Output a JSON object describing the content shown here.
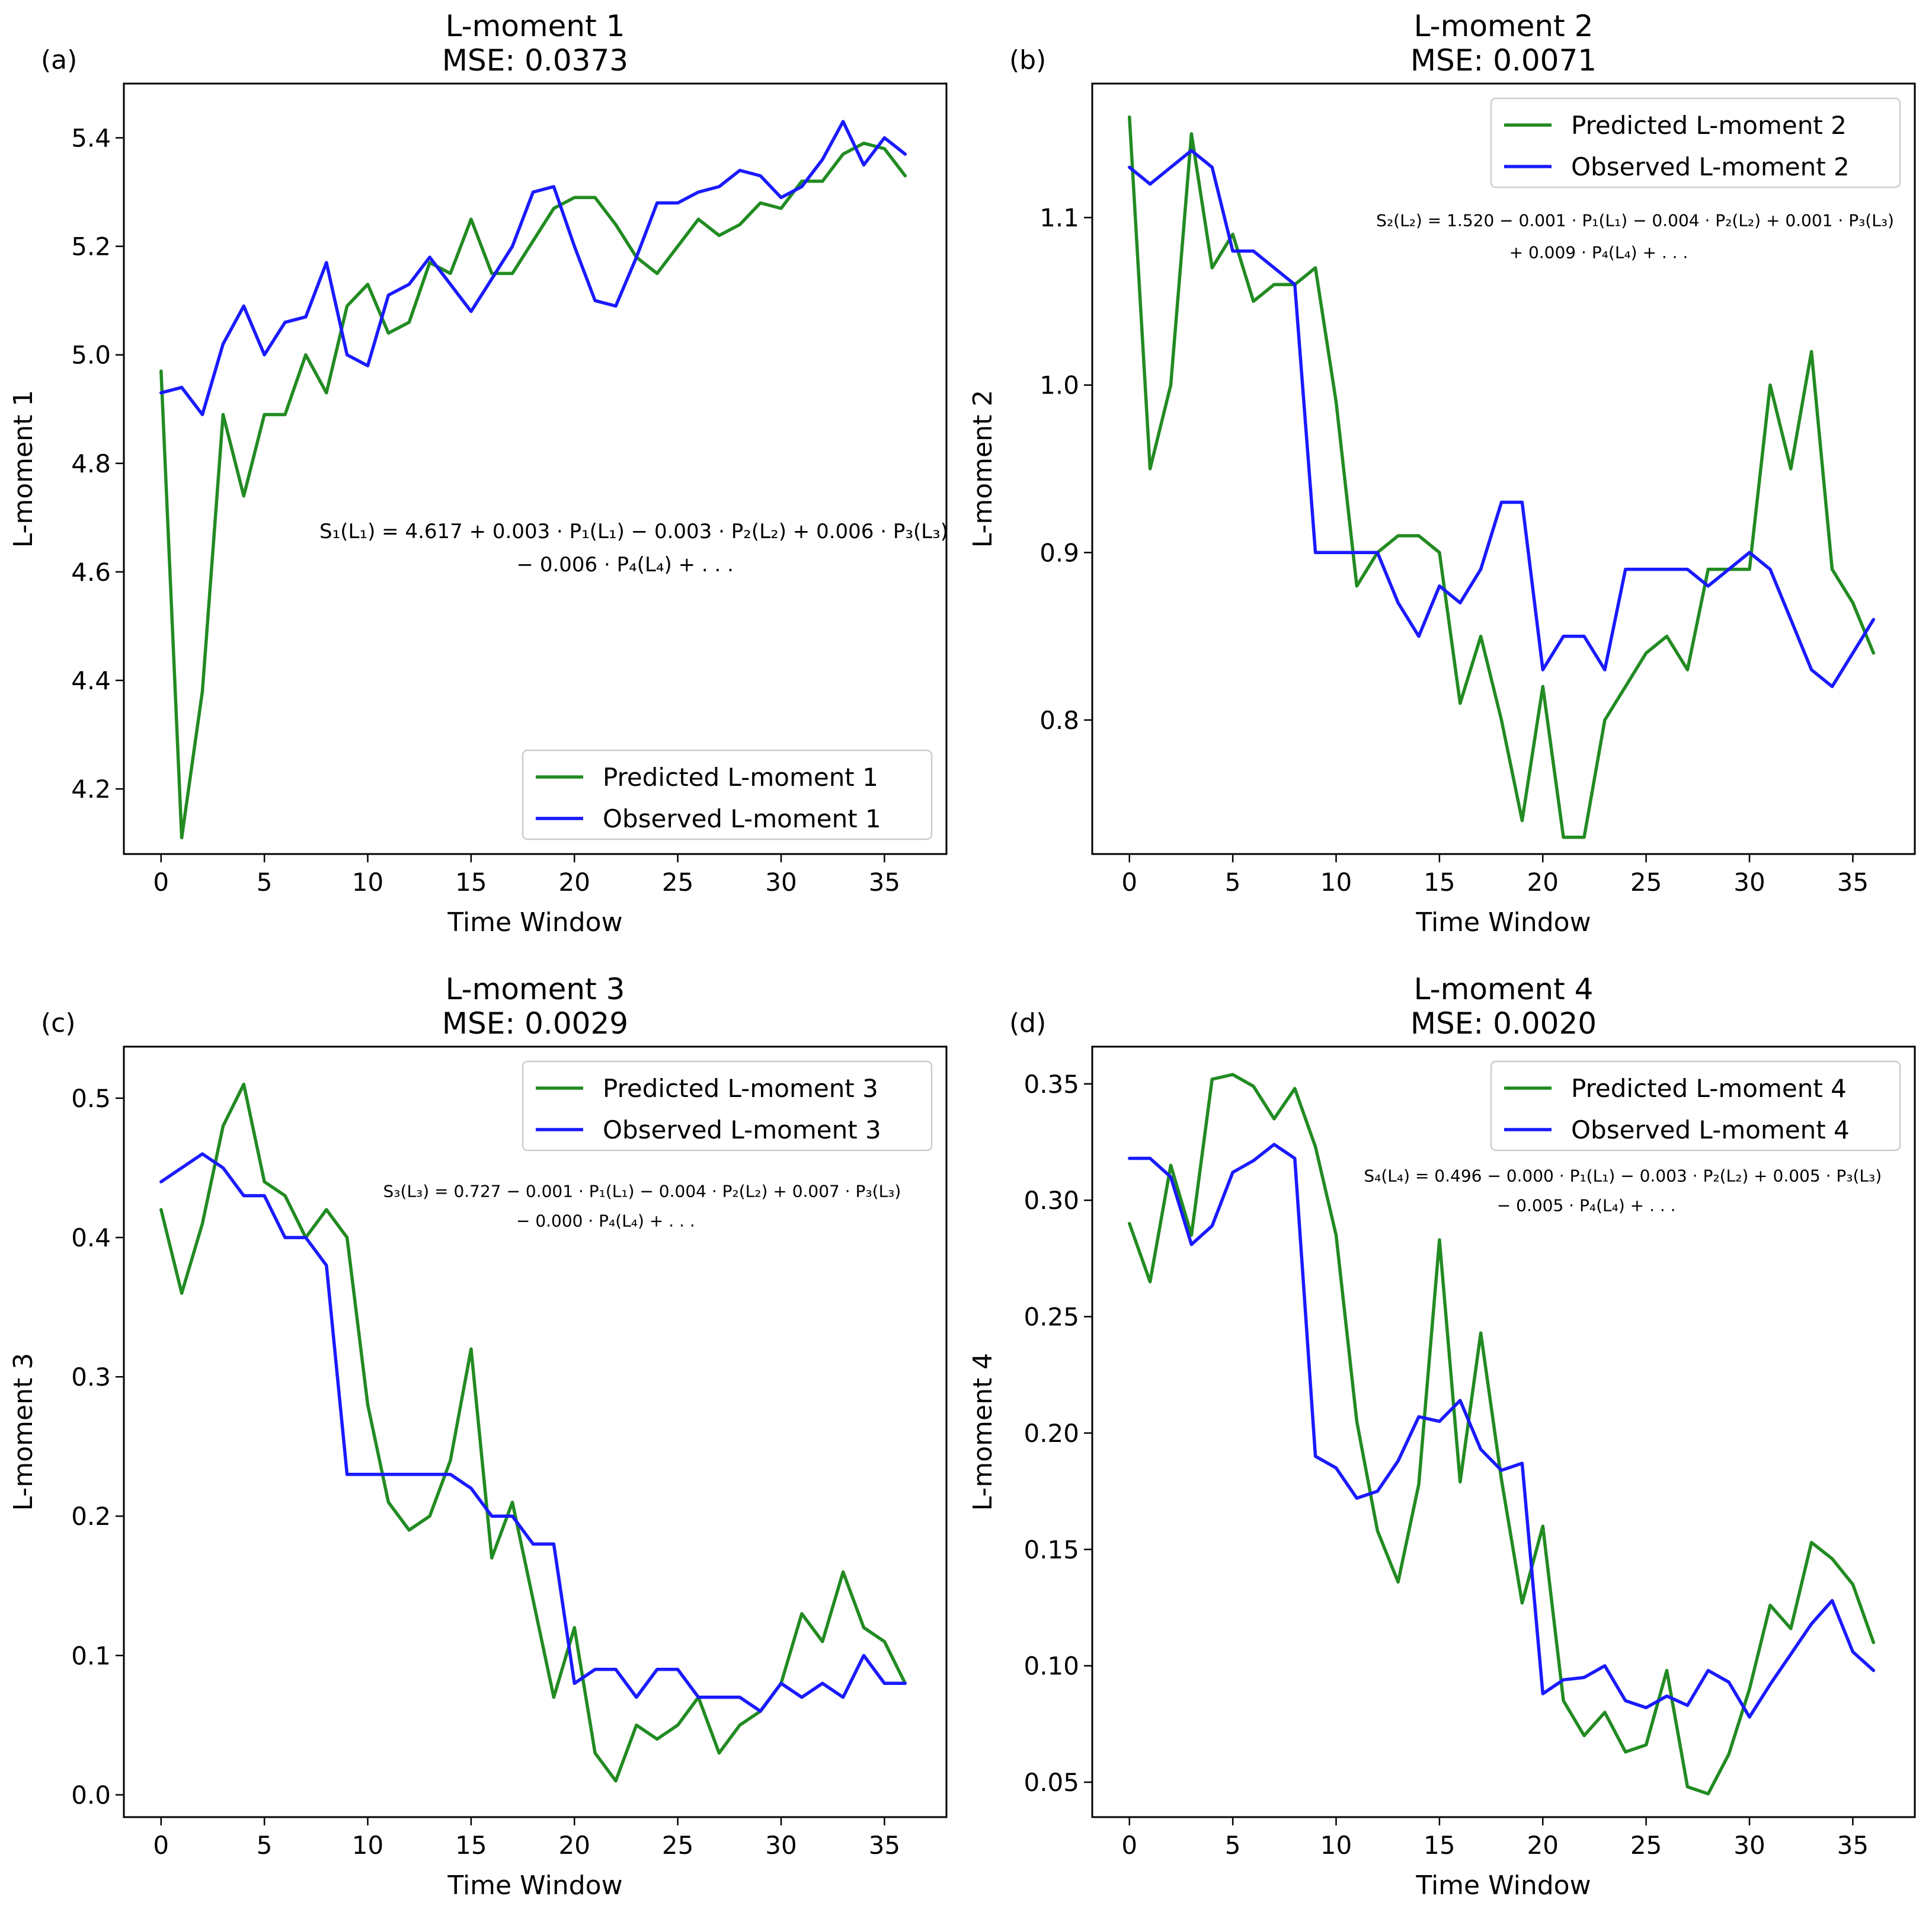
{
  "colors": {
    "predicted": "#228B22",
    "observed": "#1a1aff",
    "axis": "#000000"
  },
  "chart_data": [
    {
      "type": "line",
      "panel_label": "(a)",
      "title": "L-moment 1",
      "subtitle": "MSE: 0.0373",
      "xlabel": "Time Window",
      "ylabel": "L-moment 1",
      "xlim": [
        -1.8,
        38
      ],
      "ylim": [
        4.08,
        5.5
      ],
      "xticks": [
        0,
        5,
        10,
        15,
        20,
        25,
        30,
        35
      ],
      "yticks": [
        4.2,
        4.4,
        4.6,
        4.8,
        5.0,
        5.2,
        5.4
      ],
      "ytick_labels": [
        "4.2",
        "4.4",
        "4.6",
        "4.8",
        "5.0",
        "5.2",
        "5.4"
      ],
      "legend_position": "lower-right",
      "equation": [
        "S₁(L₁) = 4.617 + 0.003 · P₁(L₁) − 0.003 · P₂(L₂) + 0.006 · P₃(L₃)",
        "− 0.006 · P₄(L₄) + . . ."
      ],
      "series": [
        {
          "name": "Predicted L-moment 1",
          "x": [
            0,
            1,
            2,
            3,
            4,
            5,
            6,
            7,
            8,
            9,
            10,
            11,
            12,
            13,
            14,
            15,
            16,
            17,
            18,
            19,
            20,
            21,
            22,
            23,
            24,
            25,
            26,
            27,
            28,
            29,
            30,
            31,
            32,
            33,
            34,
            35,
            36
          ],
          "values": [
            4.97,
            4.11,
            4.38,
            4.89,
            4.74,
            4.89,
            4.89,
            5.0,
            4.93,
            5.09,
            5.13,
            5.04,
            5.06,
            5.17,
            5.15,
            5.25,
            5.15,
            5.15,
            5.21,
            5.27,
            5.29,
            5.29,
            5.24,
            5.18,
            5.15,
            5.2,
            5.25,
            5.22,
            5.24,
            5.28,
            5.27,
            5.32,
            5.32,
            5.37,
            5.39,
            5.38,
            5.33
          ]
        },
        {
          "name": "Observed L-moment 1",
          "x": [
            0,
            1,
            2,
            3,
            4,
            5,
            6,
            7,
            8,
            9,
            10,
            11,
            12,
            13,
            14,
            15,
            16,
            17,
            18,
            19,
            20,
            21,
            22,
            23,
            24,
            25,
            26,
            27,
            28,
            29,
            30,
            31,
            32,
            33,
            34,
            35,
            36
          ],
          "values": [
            4.93,
            4.94,
            4.89,
            5.02,
            5.09,
            5.0,
            5.06,
            5.07,
            5.17,
            5.0,
            4.98,
            5.11,
            5.13,
            5.18,
            5.13,
            5.08,
            5.14,
            5.2,
            5.3,
            5.31,
            5.2,
            5.1,
            5.09,
            5.18,
            5.28,
            5.28,
            5.3,
            5.31,
            5.34,
            5.33,
            5.29,
            5.31,
            5.36,
            5.43,
            5.35,
            5.4,
            5.37
          ]
        }
      ]
    },
    {
      "type": "line",
      "panel_label": "(b)",
      "title": "L-moment 2",
      "subtitle": "MSE: 0.0071",
      "xlabel": "Time Window",
      "ylabel": "L-moment 2",
      "xlim": [
        -1.8,
        38
      ],
      "ylim": [
        0.72,
        1.18
      ],
      "xticks": [
        0,
        5,
        10,
        15,
        20,
        25,
        30,
        35
      ],
      "yticks": [
        0.8,
        0.9,
        1.0,
        1.1
      ],
      "ytick_labels": [
        "0.8",
        "0.9",
        "1.0",
        "1.1"
      ],
      "legend_position": "upper-right",
      "equation": [
        "S₂(L₂) = 1.520 − 0.001 · P₁(L₁) − 0.004 · P₂(L₂) + 0.001 · P₃(L₃)",
        "+ 0.009 · P₄(L₄) + . . ."
      ],
      "series": [
        {
          "name": "Predicted L-moment 2",
          "x": [
            0,
            1,
            2,
            3,
            4,
            5,
            6,
            7,
            8,
            9,
            10,
            11,
            12,
            13,
            14,
            15,
            16,
            17,
            18,
            19,
            20,
            21,
            22,
            23,
            24,
            25,
            26,
            27,
            28,
            29,
            30,
            31,
            32,
            33,
            34,
            35,
            36
          ],
          "values": [
            1.16,
            0.95,
            1.0,
            1.15,
            1.07,
            1.09,
            1.05,
            1.06,
            1.06,
            1.07,
            0.99,
            0.88,
            0.9,
            0.91,
            0.91,
            0.9,
            0.81,
            0.85,
            0.8,
            0.74,
            0.82,
            0.73,
            0.73,
            0.8,
            0.82,
            0.84,
            0.85,
            0.83,
            0.89,
            0.89,
            0.89,
            1.0,
            0.95,
            1.02,
            0.89,
            0.87,
            0.84
          ]
        },
        {
          "name": "Observed L-moment 2",
          "x": [
            0,
            1,
            2,
            3,
            4,
            5,
            6,
            7,
            8,
            9,
            10,
            11,
            12,
            13,
            14,
            15,
            16,
            17,
            18,
            19,
            20,
            21,
            22,
            23,
            24,
            25,
            26,
            27,
            28,
            29,
            30,
            31,
            32,
            33,
            34,
            35,
            36
          ],
          "values": [
            1.13,
            1.12,
            1.13,
            1.14,
            1.13,
            1.08,
            1.08,
            1.07,
            1.06,
            0.9,
            0.9,
            0.9,
            0.9,
            0.87,
            0.85,
            0.88,
            0.87,
            0.89,
            0.93,
            0.93,
            0.83,
            0.85,
            0.85,
            0.83,
            0.89,
            0.89,
            0.89,
            0.89,
            0.88,
            0.89,
            0.9,
            0.89,
            0.86,
            0.83,
            0.82,
            0.84,
            0.86
          ]
        }
      ]
    },
    {
      "type": "line",
      "panel_label": "(c)",
      "title": "L-moment 3",
      "subtitle": "MSE: 0.0029",
      "xlabel": "Time Window",
      "ylabel": "L-moment 3",
      "xlim": [
        -1.8,
        38
      ],
      "ylim": [
        -0.016,
        0.537
      ],
      "xticks": [
        0,
        5,
        10,
        15,
        20,
        25,
        30,
        35
      ],
      "yticks": [
        0.0,
        0.1,
        0.2,
        0.3,
        0.4,
        0.5
      ],
      "ytick_labels": [
        "0.0",
        "0.1",
        "0.2",
        "0.3",
        "0.4",
        "0.5"
      ],
      "legend_position": "upper-right",
      "equation": [
        "S₃(L₃) = 0.727 − 0.001 · P₁(L₁) − 0.004 · P₂(L₂) + 0.007 · P₃(L₃)",
        "− 0.000 · P₄(L₄) + . . ."
      ],
      "series": [
        {
          "name": "Predicted L-moment 3",
          "x": [
            0,
            1,
            2,
            3,
            4,
            5,
            6,
            7,
            8,
            9,
            10,
            11,
            12,
            13,
            14,
            15,
            16,
            17,
            18,
            19,
            20,
            21,
            22,
            23,
            24,
            25,
            26,
            27,
            28,
            29,
            30,
            31,
            32,
            33,
            34,
            35,
            36
          ],
          "values": [
            0.42,
            0.36,
            0.41,
            0.48,
            0.51,
            0.44,
            0.43,
            0.4,
            0.42,
            0.4,
            0.28,
            0.21,
            0.19,
            0.2,
            0.24,
            0.32,
            0.17,
            0.21,
            0.14,
            0.07,
            0.12,
            0.03,
            0.01,
            0.05,
            0.04,
            0.05,
            0.07,
            0.03,
            0.05,
            0.06,
            0.08,
            0.13,
            0.11,
            0.16,
            0.12,
            0.11,
            0.08
          ]
        },
        {
          "name": "Observed L-moment 3",
          "x": [
            0,
            1,
            2,
            3,
            4,
            5,
            6,
            7,
            8,
            9,
            10,
            11,
            12,
            13,
            14,
            15,
            16,
            17,
            18,
            19,
            20,
            21,
            22,
            23,
            24,
            25,
            26,
            27,
            28,
            29,
            30,
            31,
            32,
            33,
            34,
            35,
            36
          ],
          "values": [
            0.44,
            0.45,
            0.46,
            0.45,
            0.43,
            0.43,
            0.4,
            0.4,
            0.38,
            0.23,
            0.23,
            0.23,
            0.23,
            0.23,
            0.23,
            0.22,
            0.2,
            0.2,
            0.18,
            0.18,
            0.08,
            0.09,
            0.09,
            0.07,
            0.09,
            0.09,
            0.07,
            0.07,
            0.07,
            0.06,
            0.08,
            0.07,
            0.08,
            0.07,
            0.1,
            0.08,
            0.08
          ]
        }
      ]
    },
    {
      "type": "line",
      "panel_label": "(d)",
      "title": "L-moment 4",
      "subtitle": "MSE: 0.0020",
      "xlabel": "Time Window",
      "ylabel": "L-moment 4",
      "xlim": [
        -1.8,
        38
      ],
      "ylim": [
        0.035,
        0.366
      ],
      "xticks": [
        0,
        5,
        10,
        15,
        20,
        25,
        30,
        35
      ],
      "yticks": [
        0.05,
        0.1,
        0.15,
        0.2,
        0.25,
        0.3,
        0.35
      ],
      "ytick_labels": [
        "0.05",
        "0.10",
        "0.15",
        "0.20",
        "0.25",
        "0.30",
        "0.35"
      ],
      "legend_position": "upper-right",
      "equation": [
        "S₄(L₄) = 0.496 − 0.000 · P₁(L₁) − 0.003 · P₂(L₂) + 0.005 · P₃(L₃)",
        "− 0.005 · P₄(L₄) + . . ."
      ],
      "series": [
        {
          "name": "Predicted L-moment 4",
          "x": [
            0,
            1,
            2,
            3,
            4,
            5,
            6,
            7,
            8,
            9,
            10,
            11,
            12,
            13,
            14,
            15,
            16,
            17,
            18,
            19,
            20,
            21,
            22,
            23,
            24,
            25,
            26,
            27,
            28,
            29,
            30,
            31,
            32,
            33,
            34,
            35,
            36
          ],
          "values": [
            0.29,
            0.265,
            0.315,
            0.285,
            0.352,
            0.354,
            0.349,
            0.335,
            0.348,
            0.323,
            0.285,
            0.205,
            0.158,
            0.136,
            0.178,
            0.283,
            0.179,
            0.243,
            0.18,
            0.127,
            0.16,
            0.085,
            0.07,
            0.08,
            0.063,
            0.066,
            0.098,
            0.048,
            0.045,
            0.062,
            0.09,
            0.126,
            0.116,
            0.153,
            0.146,
            0.135,
            0.11
          ]
        },
        {
          "name": "Observed L-moment 4",
          "x": [
            0,
            1,
            2,
            3,
            4,
            5,
            6,
            7,
            8,
            9,
            10,
            11,
            12,
            13,
            14,
            15,
            16,
            17,
            18,
            19,
            20,
            21,
            22,
            23,
            24,
            25,
            26,
            27,
            28,
            29,
            30,
            31,
            32,
            33,
            34,
            35,
            36
          ],
          "values": [
            0.318,
            0.318,
            0.31,
            0.281,
            0.289,
            0.312,
            0.317,
            0.324,
            0.318,
            0.19,
            0.185,
            0.172,
            0.175,
            0.188,
            0.207,
            0.205,
            0.214,
            0.193,
            0.184,
            0.187,
            0.088,
            0.094,
            0.095,
            0.1,
            0.085,
            0.082,
            0.087,
            0.083,
            0.098,
            0.093,
            0.078,
            0.092,
            0.105,
            0.118,
            0.128,
            0.106,
            0.098
          ]
        }
      ]
    }
  ]
}
